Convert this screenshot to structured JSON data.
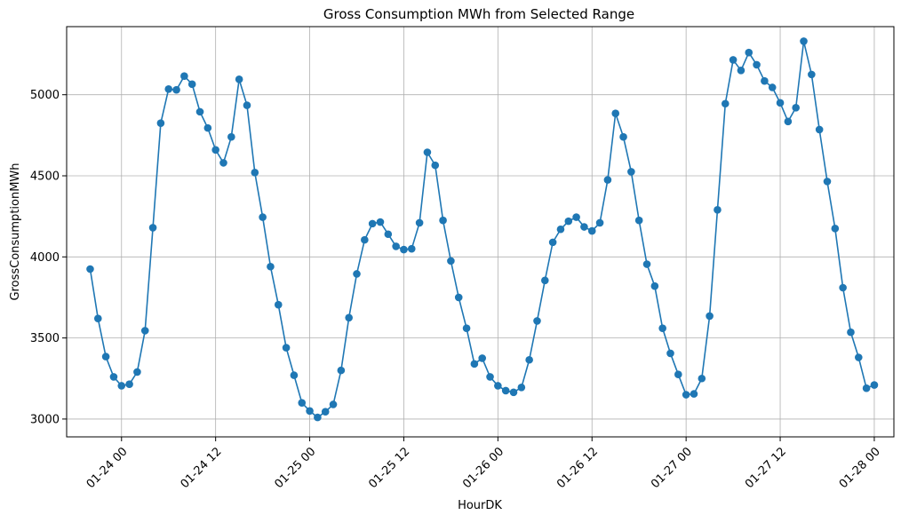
{
  "chart_data": {
    "type": "line",
    "title": "Gross Consumption MWh from Selected Range",
    "xlabel": "HourDK",
    "ylabel": "GrossConsumptionMWh",
    "x_start": "2024-01-23 20:00",
    "x_step_hours": 1,
    "xlim": [
      "2024-01-23 17:00",
      "2024-01-28 02:30"
    ],
    "ylim": [
      2890,
      5420
    ],
    "x_ticks": [
      {
        "value": "2024-01-24 00:00",
        "label": "01-24 00"
      },
      {
        "value": "2024-01-24 12:00",
        "label": "01-24 12"
      },
      {
        "value": "2024-01-25 00:00",
        "label": "01-25 00"
      },
      {
        "value": "2024-01-25 12:00",
        "label": "01-25 12"
      },
      {
        "value": "2024-01-26 00:00",
        "label": "01-26 00"
      },
      {
        "value": "2024-01-26 12:00",
        "label": "01-26 12"
      },
      {
        "value": "2024-01-27 00:00",
        "label": "01-27 00"
      },
      {
        "value": "2024-01-27 12:00",
        "label": "01-27 12"
      },
      {
        "value": "2024-01-28 00:00",
        "label": "01-28 00"
      }
    ],
    "y_ticks": [
      {
        "value": 3000,
        "label": "3000"
      },
      {
        "value": 3500,
        "label": "3500"
      },
      {
        "value": 4000,
        "label": "4000"
      },
      {
        "value": 4500,
        "label": "4500"
      },
      {
        "value": 5000,
        "label": "5000"
      }
    ],
    "grid": true,
    "color": "#1f77b4",
    "marker": "circle",
    "series": [
      {
        "values": [
          3925,
          3620,
          3385,
          3260,
          3205,
          3215,
          3290,
          3545,
          4180,
          4825,
          5035,
          5030,
          5115,
          5065,
          4895,
          4795,
          4660,
          4580,
          4740,
          5095,
          4935,
          4520,
          4245,
          3940,
          3705,
          3440,
          3270,
          3100,
          3050,
          3010,
          3045,
          3090,
          3300,
          3625,
          3895,
          4105,
          4205,
          4215,
          4140,
          4065,
          4045,
          4050,
          4210,
          4645,
          4565,
          4225,
          3975,
          3750,
          3560,
          3340,
          3375,
          3260,
          3205,
          3175,
          3165,
          3195,
          3365,
          3605,
          3855,
          4090,
          4170,
          4220,
          4245,
          4185,
          4160,
          4210,
          4475,
          4885,
          4740,
          4525,
          4225,
          3955,
          3820,
          3560,
          3405,
          3275,
          3150,
          3155,
          3250,
          3635,
          4290,
          4945,
          5215,
          5150,
          5260,
          5185,
          5085,
          5045,
          4950,
          4835,
          4920,
          5330,
          5125,
          4785,
          4465,
          4175,
          3810,
          3535,
          3380,
          3190,
          3210
        ]
      }
    ]
  }
}
